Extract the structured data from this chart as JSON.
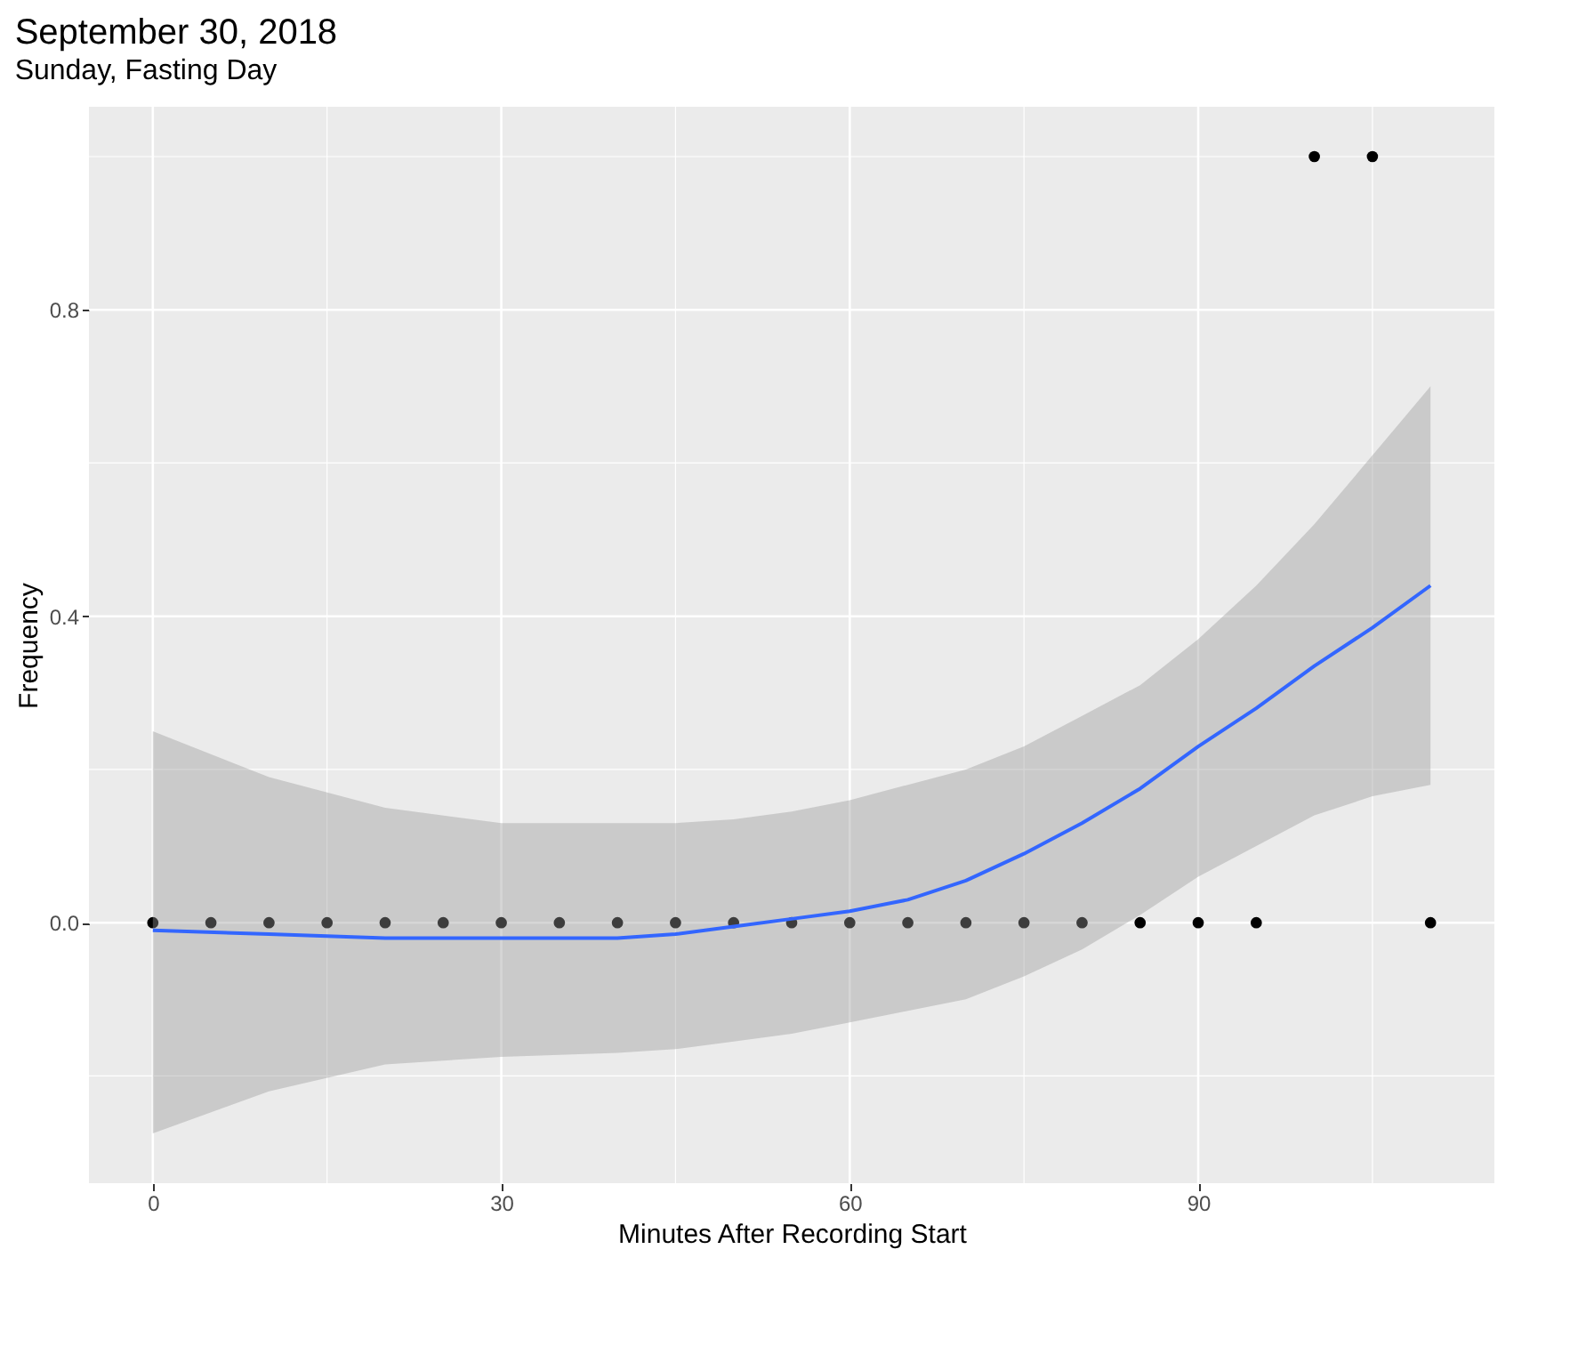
{
  "chart_data": {
    "type": "scatter",
    "title": "September 30, 2018",
    "subtitle": "Sunday, Fasting Day",
    "xlabel": "Minutes After Recording Start",
    "ylabel": "Frequency",
    "series": [
      {
        "marker": "circle",
        "color": "#000000",
        "x": [
          0,
          5,
          10,
          15,
          20,
          25,
          30,
          35,
          40,
          45,
          50,
          55,
          60,
          65,
          70,
          75,
          80,
          85,
          90,
          95,
          100,
          105,
          110
        ],
        "values": [
          0,
          0,
          0,
          0,
          0,
          0,
          0,
          0,
          0,
          0,
          0,
          0,
          0,
          0,
          0,
          0,
          0,
          0,
          0,
          0,
          1,
          1,
          0
        ]
      },
      {
        "type": "line",
        "marker": "none",
        "color": "#3366ff",
        "x": [
          0,
          10,
          20,
          30,
          40,
          45,
          50,
          55,
          60,
          65,
          70,
          75,
          80,
          85,
          90,
          95,
          100,
          105,
          110
        ],
        "values": [
          -0.01,
          -0.015,
          -0.02,
          -0.02,
          -0.02,
          -0.015,
          -0.005,
          0.005,
          0.015,
          0.03,
          0.055,
          0.09,
          0.13,
          0.175,
          0.23,
          0.28,
          0.335,
          0.385,
          0.44
        ],
        "lower": [
          -0.275,
          -0.22,
          -0.185,
          -0.175,
          -0.17,
          -0.165,
          -0.155,
          -0.145,
          -0.13,
          -0.115,
          -0.1,
          -0.07,
          -0.035,
          0.01,
          0.06,
          0.1,
          0.14,
          0.165,
          0.18
        ],
        "upper": [
          0.25,
          0.19,
          0.15,
          0.13,
          0.13,
          0.13,
          0.135,
          0.145,
          0.16,
          0.18,
          0.2,
          0.23,
          0.27,
          0.31,
          0.37,
          0.44,
          0.52,
          0.61,
          0.7
        ]
      }
    ],
    "xlim": [
      -5.5,
      115.5
    ],
    "xticks": [
      0,
      30,
      60,
      90
    ],
    "ylim": [
      -0.34,
      1.065
    ],
    "yticks": [
      {
        "value": 0,
        "label": "0.0"
      },
      {
        "value": 0.4,
        "label": "0.4"
      },
      {
        "value": 0.8,
        "label": "0.8"
      }
    ],
    "grid": true
  }
}
